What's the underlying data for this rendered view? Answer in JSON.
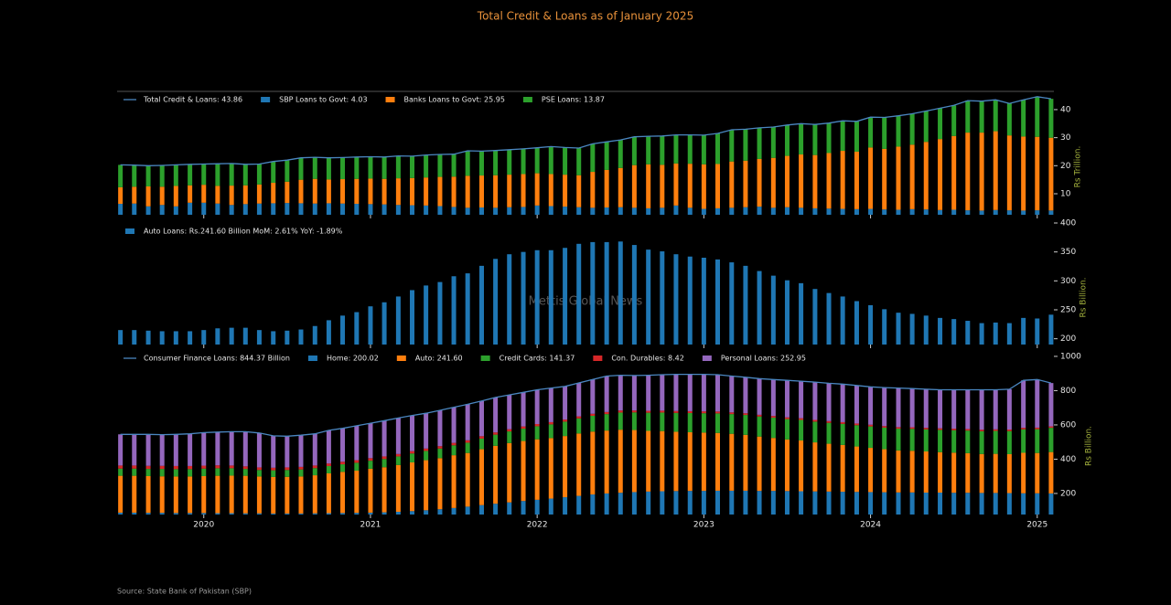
{
  "title": "Total Credit & Loans as of January 2025",
  "watermark": "Mettis Global News",
  "source": "Source: State Bank of Pakistan (SBP)",
  "chart_data": [
    {
      "type": "bar",
      "stacked": true,
      "legend": "upper left",
      "x": [
        2019.5,
        2019.583,
        2019.667,
        2019.75,
        2019.833,
        2019.917,
        2020,
        2020.083,
        2020.167,
        2020.25,
        2020.333,
        2020.417,
        2020.5,
        2020.583,
        2020.667,
        2020.75,
        2020.833,
        2020.917,
        2021,
        2021.083,
        2021.167,
        2021.25,
        2021.333,
        2021.417,
        2021.5,
        2021.583,
        2021.667,
        2021.75,
        2021.833,
        2021.917,
        2022,
        2022.083,
        2022.167,
        2022.25,
        2022.333,
        2022.417,
        2022.5,
        2022.583,
        2022.667,
        2022.75,
        2022.833,
        2022.917,
        2023,
        2023.083,
        2023.167,
        2023.25,
        2023.333,
        2023.417,
        2023.5,
        2023.583,
        2023.667,
        2023.75,
        2023.833,
        2023.917,
        2024,
        2024.083,
        2024.167,
        2024.25,
        2024.333,
        2024.417,
        2024.5,
        2024.583,
        2024.667,
        2024.75,
        2024.833,
        2024.917,
        2025,
        2025.083
      ],
      "xlim": [
        2019.48,
        2025.1
      ],
      "xticks": [
        2020,
        2021,
        2022,
        2023,
        2024,
        2025
      ],
      "ylim": [
        2.5,
        46.5
      ],
      "yticks": [
        10,
        20,
        30,
        40
      ],
      "ylabel": "Rs Trillion.",
      "series": [
        {
          "name": "Total Credit & Loans: 43.86",
          "type": "line",
          "color": "#4a86c0",
          "values": [
            20.3,
            20.2,
            20.0,
            20.1,
            20.3,
            20.5,
            20.6,
            20.7,
            20.8,
            20.5,
            20.6,
            21.5,
            22.0,
            22.8,
            23.0,
            22.8,
            22.9,
            23.1,
            23.2,
            23.1,
            23.5,
            23.4,
            23.8,
            24.0,
            24.1,
            25.3,
            25.2,
            25.4,
            25.7,
            26.0,
            26.4,
            26.8,
            26.5,
            26.3,
            27.8,
            28.5,
            29.2,
            30.3,
            30.5,
            30.6,
            31.0,
            31.0,
            30.9,
            31.5,
            32.8,
            33.0,
            33.5,
            33.8,
            34.5,
            35.0,
            34.7,
            35.2,
            36.0,
            35.8,
            37.3,
            37.2,
            37.8,
            38.5,
            39.5,
            40.5,
            41.5,
            43.2,
            43.0,
            43.5,
            42.2,
            43.5,
            44.6,
            43.86
          ]
        },
        {
          "name": "SBP Loans to Govt: 4.03",
          "color": "#1f77b4",
          "values": [
            6.4,
            6.5,
            5.5,
            6.0,
            5.5,
            6.8,
            6.8,
            6.5,
            6.0,
            6.3,
            6.5,
            6.6,
            6.7,
            6.6,
            6.5,
            6.6,
            6.5,
            6.4,
            6.3,
            6.2,
            6.0,
            5.9,
            5.8,
            5.6,
            5.3,
            5.0,
            5.1,
            5.0,
            5.2,
            5.3,
            5.8,
            5.6,
            5.4,
            5.2,
            5.0,
            5.1,
            5.2,
            5.0,
            4.8,
            5.0,
            5.8,
            5.0,
            4.6,
            4.8,
            5.0,
            5.2,
            5.4,
            5.0,
            5.2,
            5.0,
            4.8,
            4.7,
            4.6,
            4.5,
            4.6,
            4.4,
            4.3,
            4.5,
            4.4,
            4.2,
            4.3,
            4.1,
            4.0,
            4.2,
            4.1,
            4.0,
            4.1,
            4.03
          ]
        },
        {
          "name": "Banks Loans to Govt: 25.95",
          "color": "#ff7f0e",
          "values": [
            5.9,
            6.0,
            7.1,
            6.5,
            7.3,
            6.2,
            6.4,
            6.3,
            6.9,
            6.7,
            6.8,
            7.3,
            7.6,
            8.4,
            8.8,
            8.5,
            8.7,
            8.9,
            9.1,
            9.1,
            9.5,
            9.7,
            10.0,
            10.4,
            10.8,
            11.4,
            11.4,
            11.6,
            11.6,
            11.7,
            11.5,
            11.4,
            11.4,
            11.4,
            12.8,
            13.4,
            14.0,
            15.2,
            15.7,
            15.3,
            15.0,
            15.7,
            15.9,
            15.8,
            16.5,
            16.6,
            17.0,
            17.8,
            18.3,
            19.0,
            19.0,
            19.8,
            20.7,
            20.5,
            21.9,
            21.6,
            22.5,
            23.0,
            24.1,
            25.3,
            26.3,
            27.7,
            27.8,
            28.1,
            26.7,
            26.4,
            26.2,
            25.95
          ]
        },
        {
          "name": "PSE Loans: 13.87",
          "color": "#2ca02c",
          "values": [
            8.0,
            7.7,
            7.4,
            7.6,
            7.5,
            7.5,
            7.4,
            7.9,
            7.9,
            7.5,
            7.3,
            7.6,
            7.7,
            7.8,
            7.7,
            7.7,
            7.7,
            7.8,
            7.8,
            7.8,
            8.0,
            7.8,
            8.0,
            8.0,
            8.0,
            8.9,
            8.7,
            8.8,
            8.9,
            9.0,
            9.1,
            9.8,
            9.7,
            9.7,
            10.0,
            10.0,
            10.0,
            10.1,
            10.0,
            10.3,
            10.2,
            10.3,
            10.4,
            10.9,
            11.3,
            11.2,
            11.1,
            11.0,
            11.0,
            11.0,
            10.9,
            10.7,
            10.7,
            10.8,
            10.8,
            11.2,
            11.0,
            11.0,
            11.0,
            11.0,
            10.9,
            11.4,
            11.2,
            11.2,
            11.4,
            13.1,
            14.3,
            13.87
          ]
        }
      ]
    },
    {
      "type": "bar",
      "legend": "upper left",
      "x": [
        2019.5,
        2019.583,
        2019.667,
        2019.75,
        2019.833,
        2019.917,
        2020,
        2020.083,
        2020.167,
        2020.25,
        2020.333,
        2020.417,
        2020.5,
        2020.583,
        2020.667,
        2020.75,
        2020.833,
        2020.917,
        2021,
        2021.083,
        2021.167,
        2021.25,
        2021.333,
        2021.417,
        2021.5,
        2021.583,
        2021.667,
        2021.75,
        2021.833,
        2021.917,
        2022,
        2022.083,
        2022.167,
        2022.25,
        2022.333,
        2022.417,
        2022.5,
        2022.583,
        2022.667,
        2022.75,
        2022.833,
        2022.917,
        2023,
        2023.083,
        2023.167,
        2023.25,
        2023.333,
        2023.417,
        2023.5,
        2023.583,
        2023.667,
        2023.75,
        2023.833,
        2023.917,
        2024,
        2024.083,
        2024.167,
        2024.25,
        2024.333,
        2024.417,
        2024.5,
        2024.583,
        2024.667,
        2024.75,
        2024.833,
        2024.917,
        2025,
        2025.083
      ],
      "xlim": [
        2019.48,
        2025.1
      ],
      "xticks": [
        2020,
        2021,
        2022,
        2023,
        2024,
        2025
      ],
      "ylim": [
        190,
        400
      ],
      "yticks": [
        200,
        250,
        300,
        350,
        400
      ],
      "ylabel": "Rs Billion.",
      "series": [
        {
          "name": "Auto Loans: Rs.241.60 Billion MoM: 2.61% YoY: -1.89%",
          "color": "#1f77b4",
          "values": [
            215,
            215,
            214,
            213,
            213,
            213,
            215,
            218,
            219,
            219,
            215,
            213,
            214,
            216,
            222,
            232,
            240,
            246,
            256,
            263,
            273,
            284,
            292,
            298,
            308,
            313,
            326,
            338,
            346,
            350,
            353,
            353,
            357,
            364,
            367,
            367,
            368,
            362,
            354,
            351,
            346,
            342,
            340,
            337,
            332,
            326,
            317,
            309,
            301,
            296,
            286,
            279,
            273,
            265,
            258,
            251,
            245,
            243,
            240,
            236,
            234,
            231,
            227,
            228,
            227,
            236,
            235,
            241.6
          ]
        }
      ]
    },
    {
      "type": "bar",
      "stacked": true,
      "legend": "upper left",
      "x": [
        2019.5,
        2019.583,
        2019.667,
        2019.75,
        2019.833,
        2019.917,
        2020,
        2020.083,
        2020.167,
        2020.25,
        2020.333,
        2020.417,
        2020.5,
        2020.583,
        2020.667,
        2020.75,
        2020.833,
        2020.917,
        2021,
        2021.083,
        2021.167,
        2021.25,
        2021.333,
        2021.417,
        2021.5,
        2021.583,
        2021.667,
        2021.75,
        2021.833,
        2021.917,
        2022,
        2022.083,
        2022.167,
        2022.25,
        2022.333,
        2022.417,
        2022.5,
        2022.583,
        2022.667,
        2022.75,
        2022.833,
        2022.917,
        2023,
        2023.083,
        2023.167,
        2023.25,
        2023.333,
        2023.417,
        2023.5,
        2023.583,
        2023.667,
        2023.75,
        2023.833,
        2023.917,
        2024,
        2024.083,
        2024.167,
        2024.25,
        2024.333,
        2024.417,
        2024.5,
        2024.583,
        2024.667,
        2024.75,
        2024.833,
        2024.917,
        2025,
        2025.083
      ],
      "xlim": [
        2019.48,
        2025.1
      ],
      "xticks": [
        2020,
        2021,
        2022,
        2023,
        2024,
        2025
      ],
      "ylim": [
        77,
        1037
      ],
      "yticks": [
        200,
        400,
        600,
        800,
        1000
      ],
      "ylabel": "Rs Billion.",
      "series": [
        {
          "name": "Consumer Finance Loans: 844.37 Billion",
          "type": "line",
          "color": "#4a86c0",
          "values": [
            545,
            545,
            545,
            543,
            545,
            548,
            555,
            558,
            560,
            560,
            553,
            536,
            534,
            540,
            548,
            568,
            580,
            595,
            610,
            625,
            640,
            655,
            668,
            685,
            703,
            720,
            740,
            760,
            775,
            790,
            805,
            815,
            825,
            845,
            865,
            885,
            890,
            888,
            890,
            893,
            895,
            895,
            895,
            893,
            885,
            878,
            870,
            865,
            860,
            855,
            850,
            843,
            838,
            830,
            822,
            818,
            815,
            812,
            808,
            805,
            805,
            805,
            805,
            805,
            808,
            860,
            865,
            844.37
          ]
        },
        {
          "name": "Home: 200.02",
          "color": "#1f77b4",
          "values": [
            88,
            88,
            87,
            87,
            86,
            86,
            86,
            85,
            85,
            84,
            84,
            83,
            83,
            83,
            84,
            85,
            86,
            87,
            88,
            90,
            93,
            97,
            102,
            108,
            115,
            123,
            132,
            140,
            148,
            156,
            163,
            170,
            178,
            186,
            194,
            200,
            204,
            208,
            211,
            213,
            214,
            215,
            215,
            216,
            216,
            216,
            215,
            215,
            214,
            213,
            212,
            211,
            210,
            209,
            208,
            207,
            206,
            206,
            205,
            205,
            204,
            204,
            203,
            203,
            202,
            201,
            201,
            200.02
          ]
        },
        {
          "name": "Auto: 241.60",
          "color": "#ff7f0e",
          "values": [
            215,
            215,
            214,
            213,
            213,
            213,
            215,
            218,
            219,
            219,
            215,
            213,
            214,
            216,
            222,
            232,
            240,
            246,
            256,
            263,
            273,
            284,
            292,
            298,
            308,
            313,
            326,
            338,
            346,
            350,
            353,
            353,
            357,
            364,
            367,
            367,
            368,
            362,
            354,
            351,
            346,
            342,
            340,
            337,
            332,
            326,
            317,
            309,
            301,
            296,
            286,
            279,
            273,
            265,
            258,
            251,
            245,
            243,
            240,
            236,
            234,
            231,
            227,
            228,
            227,
            236,
            235,
            241.6
          ]
        },
        {
          "name": "Credit Cards: 141.37",
          "color": "#2ca02c",
          "values": [
            42,
            42,
            42,
            43,
            43,
            43,
            44,
            44,
            43,
            40,
            38,
            39,
            40,
            41,
            42,
            43,
            44,
            46,
            47,
            48,
            50,
            52,
            54,
            56,
            58,
            60,
            62,
            65,
            68,
            72,
            76,
            80,
            84,
            88,
            92,
            96,
            100,
            103,
            106,
            108,
            110,
            112,
            113,
            114,
            115,
            116,
            117,
            118,
            119,
            120,
            121,
            122,
            123,
            124,
            125,
            126,
            127,
            128,
            129,
            130,
            131,
            132,
            133,
            134,
            135,
            137,
            139,
            141.37
          ]
        },
        {
          "name": "Con. Durables: 8.42",
          "color": "#d62728",
          "values": [
            18,
            18,
            18,
            18,
            18,
            18,
            17,
            17,
            16,
            15,
            15,
            15,
            15,
            15,
            15,
            15,
            15,
            15,
            15,
            15,
            14,
            14,
            14,
            14,
            14,
            14,
            14,
            13,
            13,
            13,
            13,
            13,
            12,
            12,
            12,
            12,
            12,
            11,
            11,
            11,
            11,
            11,
            11,
            11,
            10,
            10,
            10,
            10,
            10,
            10,
            10,
            10,
            10,
            10,
            10,
            9,
            9,
            9,
            9,
            9,
            9,
            9,
            9,
            9,
            9,
            9,
            9,
            8.42
          ]
        },
        {
          "name": "Personal Loans: 252.95",
          "color": "#9467bd",
          "values": [
            182,
            182,
            184,
            182,
            185,
            188,
            193,
            194,
            197,
            202,
            201,
            186,
            182,
            185,
            185,
            193,
            195,
            201,
            204,
            209,
            210,
            208,
            206,
            209,
            208,
            210,
            206,
            204,
            200,
            199,
            200,
            199,
            194,
            195,
            200,
            210,
            206,
            204,
            208,
            210,
            214,
            215,
            216,
            215,
            212,
            210,
            211,
            213,
            216,
            216,
            221,
            221,
            222,
            222,
            221,
            225,
            228,
            226,
            225,
            225,
            227,
            229,
            233,
            231,
            235,
            277,
            281,
            252.95
          ]
        }
      ]
    }
  ]
}
